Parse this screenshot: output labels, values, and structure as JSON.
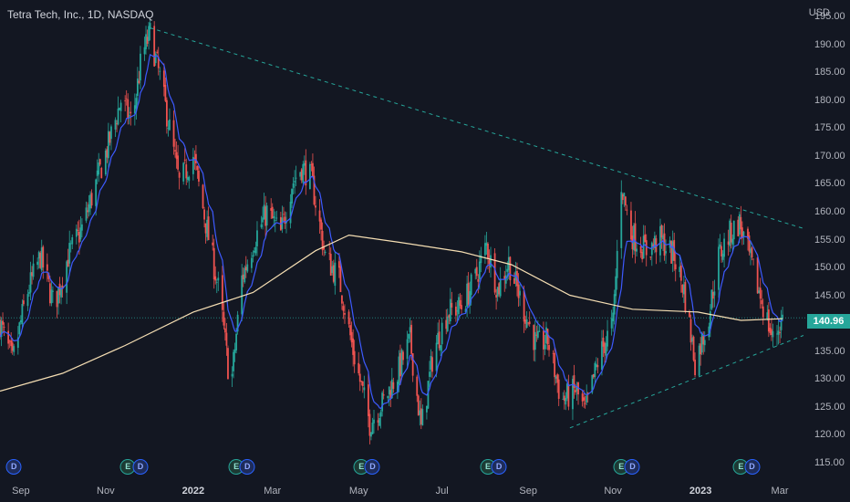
{
  "header": {
    "title": "Tetra Tech, Inc., 1D, NASDAQ",
    "currency": "USD"
  },
  "last_price": {
    "label": "140.96",
    "value": 140.96
  },
  "colors": {
    "background": "#131722",
    "up": "#26a69a",
    "down": "#ef5350",
    "ema_fast": "#3d5afe",
    "sma_slow": "#f5deb3",
    "trendline": "#26a69a"
  },
  "chart_data": {
    "type": "candlestick",
    "symbol": "Tetra Tech, Inc.",
    "interval": "1D",
    "exchange": "NASDAQ",
    "ylim": [
      112,
      198
    ],
    "xlim": [
      "2021-08-17",
      "2023-03-20"
    ],
    "y_ticks": [
      115,
      120,
      125,
      130,
      135,
      140,
      145,
      150,
      155,
      160,
      165,
      170,
      175,
      180,
      185,
      190,
      195
    ],
    "y_tick_labels": [
      "115.00",
      "120.00",
      "125.00",
      "130.00",
      "135.00",
      "140.00",
      "145.00",
      "150.00",
      "155.00",
      "160.00",
      "165.00",
      "170.00",
      "175.00",
      "180.00",
      "185.00",
      "190.00",
      "195.00"
    ],
    "x_ticks": [
      {
        "label": "Sep",
        "date": "2021-09-01",
        "bold": false
      },
      {
        "label": "Nov",
        "date": "2021-11-01",
        "bold": false
      },
      {
        "label": "2022",
        "date": "2022-01-03",
        "bold": true
      },
      {
        "label": "Mar",
        "date": "2022-03-01",
        "bold": false
      },
      {
        "label": "May",
        "date": "2022-05-02",
        "bold": false
      },
      {
        "label": "Jul",
        "date": "2022-07-01",
        "bold": false
      },
      {
        "label": "Sep",
        "date": "2022-09-01",
        "bold": false
      },
      {
        "label": "Nov",
        "date": "2022-11-01",
        "bold": false
      },
      {
        "label": "2023",
        "date": "2023-01-03",
        "bold": true
      },
      {
        "label": "Mar",
        "date": "2023-03-01",
        "bold": false
      }
    ],
    "price_path": [
      [
        "2021-08-17",
        140
      ],
      [
        "2021-08-26",
        133
      ],
      [
        "2021-09-05",
        145
      ],
      [
        "2021-09-15",
        152
      ],
      [
        "2021-09-25",
        143
      ],
      [
        "2021-10-05",
        152
      ],
      [
        "2021-10-15",
        157
      ],
      [
        "2021-10-25",
        165
      ],
      [
        "2021-11-03",
        172
      ],
      [
        "2021-11-12",
        180
      ],
      [
        "2021-11-20",
        176
      ],
      [
        "2021-11-27",
        188
      ],
      [
        "2021-12-03",
        192
      ],
      [
        "2021-12-10",
        184
      ],
      [
        "2021-12-17",
        175
      ],
      [
        "2021-12-24",
        165
      ],
      [
        "2022-01-03",
        170
      ],
      [
        "2022-01-12",
        158
      ],
      [
        "2022-01-22",
        145
      ],
      [
        "2022-01-30",
        128
      ],
      [
        "2022-02-07",
        148
      ],
      [
        "2022-02-16",
        155
      ],
      [
        "2022-02-25",
        160
      ],
      [
        "2022-03-07",
        156
      ],
      [
        "2022-03-15",
        165
      ],
      [
        "2022-03-22",
        168
      ],
      [
        "2022-03-29",
        166
      ],
      [
        "2022-04-08",
        152
      ],
      [
        "2022-04-18",
        148
      ],
      [
        "2022-04-28",
        135
      ],
      [
        "2022-05-10",
        122
      ],
      [
        "2022-05-20",
        126
      ],
      [
        "2022-05-30",
        131
      ],
      [
        "2022-06-08",
        137
      ],
      [
        "2022-06-16",
        121
      ],
      [
        "2022-06-25",
        135
      ],
      [
        "2022-07-05",
        142
      ],
      [
        "2022-07-15",
        143
      ],
      [
        "2022-07-25",
        148
      ],
      [
        "2022-08-02",
        154
      ],
      [
        "2022-08-10",
        146
      ],
      [
        "2022-08-18",
        151
      ],
      [
        "2022-08-28",
        143
      ],
      [
        "2022-09-07",
        136
      ],
      [
        "2022-09-15",
        137
      ],
      [
        "2022-09-25",
        126
      ],
      [
        "2022-10-05",
        128
      ],
      [
        "2022-10-12",
        124
      ],
      [
        "2022-10-22",
        134
      ],
      [
        "2022-11-01",
        140
      ],
      [
        "2022-11-07",
        165
      ],
      [
        "2022-11-14",
        156
      ],
      [
        "2022-11-25",
        153
      ],
      [
        "2022-12-05",
        155
      ],
      [
        "2022-12-15",
        152
      ],
      [
        "2022-12-22",
        146
      ],
      [
        "2022-12-30",
        133
      ],
      [
        "2023-01-08",
        140
      ],
      [
        "2023-01-16",
        152
      ],
      [
        "2023-01-24",
        156
      ],
      [
        "2023-01-31",
        158
      ],
      [
        "2023-02-08",
        151
      ],
      [
        "2023-02-16",
        144
      ],
      [
        "2023-02-24",
        137
      ],
      [
        "2023-03-03",
        140.96
      ]
    ],
    "sma_path": [
      [
        "2021-08-17",
        127.8
      ],
      [
        "2021-10-01",
        131
      ],
      [
        "2021-11-15",
        136
      ],
      [
        "2022-01-03",
        142
      ],
      [
        "2022-02-15",
        145.5
      ],
      [
        "2022-04-01",
        153
      ],
      [
        "2022-04-25",
        155.8
      ],
      [
        "2022-06-01",
        154.5
      ],
      [
        "2022-07-15",
        152.8
      ],
      [
        "2022-08-20",
        150.5
      ],
      [
        "2022-10-01",
        145
      ],
      [
        "2022-11-15",
        142.5
      ],
      [
        "2023-01-01",
        142
      ],
      [
        "2023-02-01",
        140.5
      ],
      [
        "2023-03-03",
        140.8
      ]
    ],
    "trendlines": [
      {
        "name": "upper",
        "from": [
          "2021-12-03",
          193
        ],
        "to": [
          "2023-03-18",
          157
        ]
      },
      {
        "name": "lower",
        "from": [
          "2022-10-01",
          121.2
        ],
        "to": [
          "2023-03-18",
          137.8
        ]
      }
    ],
    "events": [
      {
        "type": "D",
        "label": "D",
        "date": "2021-08-27"
      },
      {
        "type": "E",
        "label": "E",
        "date": "2021-11-17"
      },
      {
        "type": "D",
        "label": "D",
        "date": "2021-11-26"
      },
      {
        "type": "E",
        "label": "E",
        "date": "2022-02-03"
      },
      {
        "type": "D",
        "label": "D",
        "date": "2022-02-11"
      },
      {
        "type": "E",
        "label": "E",
        "date": "2022-05-04"
      },
      {
        "type": "D",
        "label": "D",
        "date": "2022-05-12"
      },
      {
        "type": "E",
        "label": "E",
        "date": "2022-08-03"
      },
      {
        "type": "D",
        "label": "D",
        "date": "2022-08-11"
      },
      {
        "type": "E",
        "label": "E",
        "date": "2022-11-07"
      },
      {
        "type": "D",
        "label": "D",
        "date": "2022-11-15"
      },
      {
        "type": "E",
        "label": "E",
        "date": "2023-02-01"
      },
      {
        "type": "D",
        "label": "D",
        "date": "2023-02-09"
      }
    ]
  }
}
